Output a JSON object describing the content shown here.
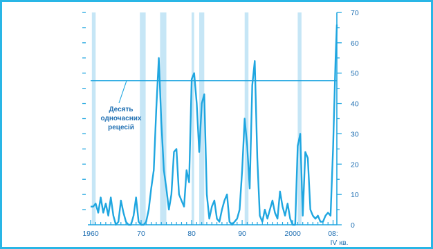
{
  "chart_data": {
    "type": "line",
    "title": "",
    "xlabel": "",
    "ylabel": "",
    "ylim": [
      0,
      70
    ],
    "xlim": [
      1960,
      2008.75
    ],
    "y_ticks": [
      0,
      10,
      20,
      30,
      40,
      50,
      60,
      70
    ],
    "y_tick_labels": [
      "0",
      "10",
      "20",
      "30",
      "40",
      "50",
      "60",
      "70"
    ],
    "x_ticks": [
      1960,
      1970,
      1980,
      1990,
      2000,
      2008
    ],
    "x_tick_labels": [
      "1960",
      "70",
      "80",
      "90",
      "2000",
      "08:"
    ],
    "x_sublabel": "IV кв.",
    "grid": false,
    "colors": {
      "line": "#1fa6e0",
      "shade": "#c6e6f6",
      "text": "#1f6fb2",
      "frame": "#29b6e6"
    },
    "threshold": {
      "value": 47.5
    },
    "annotation": {
      "lines": [
        "Десять",
        "одночасних",
        "рецесій"
      ]
    },
    "recession_periods": [
      [
        1960.25,
        1961.0
      ],
      [
        1969.75,
        1970.9
      ],
      [
        1973.75,
        1975.0
      ],
      [
        1980.0,
        1980.5
      ],
      [
        1981.5,
        1982.5
      ],
      [
        1990.5,
        1991.25
      ],
      [
        2001.0,
        2001.75
      ]
    ],
    "series": [
      {
        "x": [
          1960,
          1960.5,
          1961,
          1961.5,
          1962,
          1962.5,
          1963,
          1963.5,
          1964,
          1964.5,
          1965,
          1965.5,
          1966,
          1966.5,
          1967,
          1967.5,
          1968,
          1968.5,
          1969,
          1969.5,
          1970,
          1970.5,
          1971,
          1971.5,
          1972,
          1972.5,
          1973,
          1973.5,
          1974,
          1974.5,
          1975,
          1975.5,
          1976,
          1976.5,
          1977,
          1977.5,
          1978,
          1978.5,
          1979,
          1979.5,
          1980,
          1980.5,
          1981,
          1981.5,
          1982,
          1982.5,
          1983,
          1983.5,
          1984,
          1984.5,
          1985,
          1985.5,
          1986,
          1986.5,
          1987,
          1987.5,
          1988,
          1988.5,
          1989,
          1989.5,
          1990,
          1990.5,
          1991,
          1991.5,
          1992,
          1992.5,
          1993,
          1993.5,
          1994,
          1994.5,
          1995,
          1995.5,
          1996,
          1996.5,
          1997,
          1997.5,
          1998,
          1998.5,
          1999,
          1999.5,
          2000,
          2000.5,
          2001,
          2001.5,
          2002,
          2002.5,
          2003,
          2003.5,
          2004,
          2004.5,
          2005,
          2005.5,
          2006,
          2006.5,
          2007,
          2007.5,
          2008,
          2008.5,
          2008.75
        ],
        "y": [
          6,
          6,
          7,
          4,
          9,
          4,
          7,
          3,
          9,
          3,
          0,
          1,
          8,
          4,
          1,
          0,
          0,
          3,
          9,
          1,
          0,
          0,
          1,
          5,
          12,
          18,
          38,
          55,
          34,
          18,
          12,
          5,
          10,
          24,
          25,
          10,
          8,
          6,
          18,
          14,
          48,
          50,
          40,
          24,
          40,
          43,
          10,
          2,
          6,
          8,
          2,
          1,
          5,
          8,
          10,
          1,
          0,
          1,
          2,
          5,
          18,
          35,
          26,
          12,
          46,
          54,
          22,
          3,
          1,
          5,
          2,
          5,
          8,
          4,
          2,
          11,
          6,
          3,
          7,
          2,
          0,
          0,
          26,
          30,
          3,
          24,
          22,
          5,
          3,
          2,
          3,
          1,
          1,
          3,
          4,
          3,
          25,
          55,
          66
        ]
      }
    ]
  }
}
